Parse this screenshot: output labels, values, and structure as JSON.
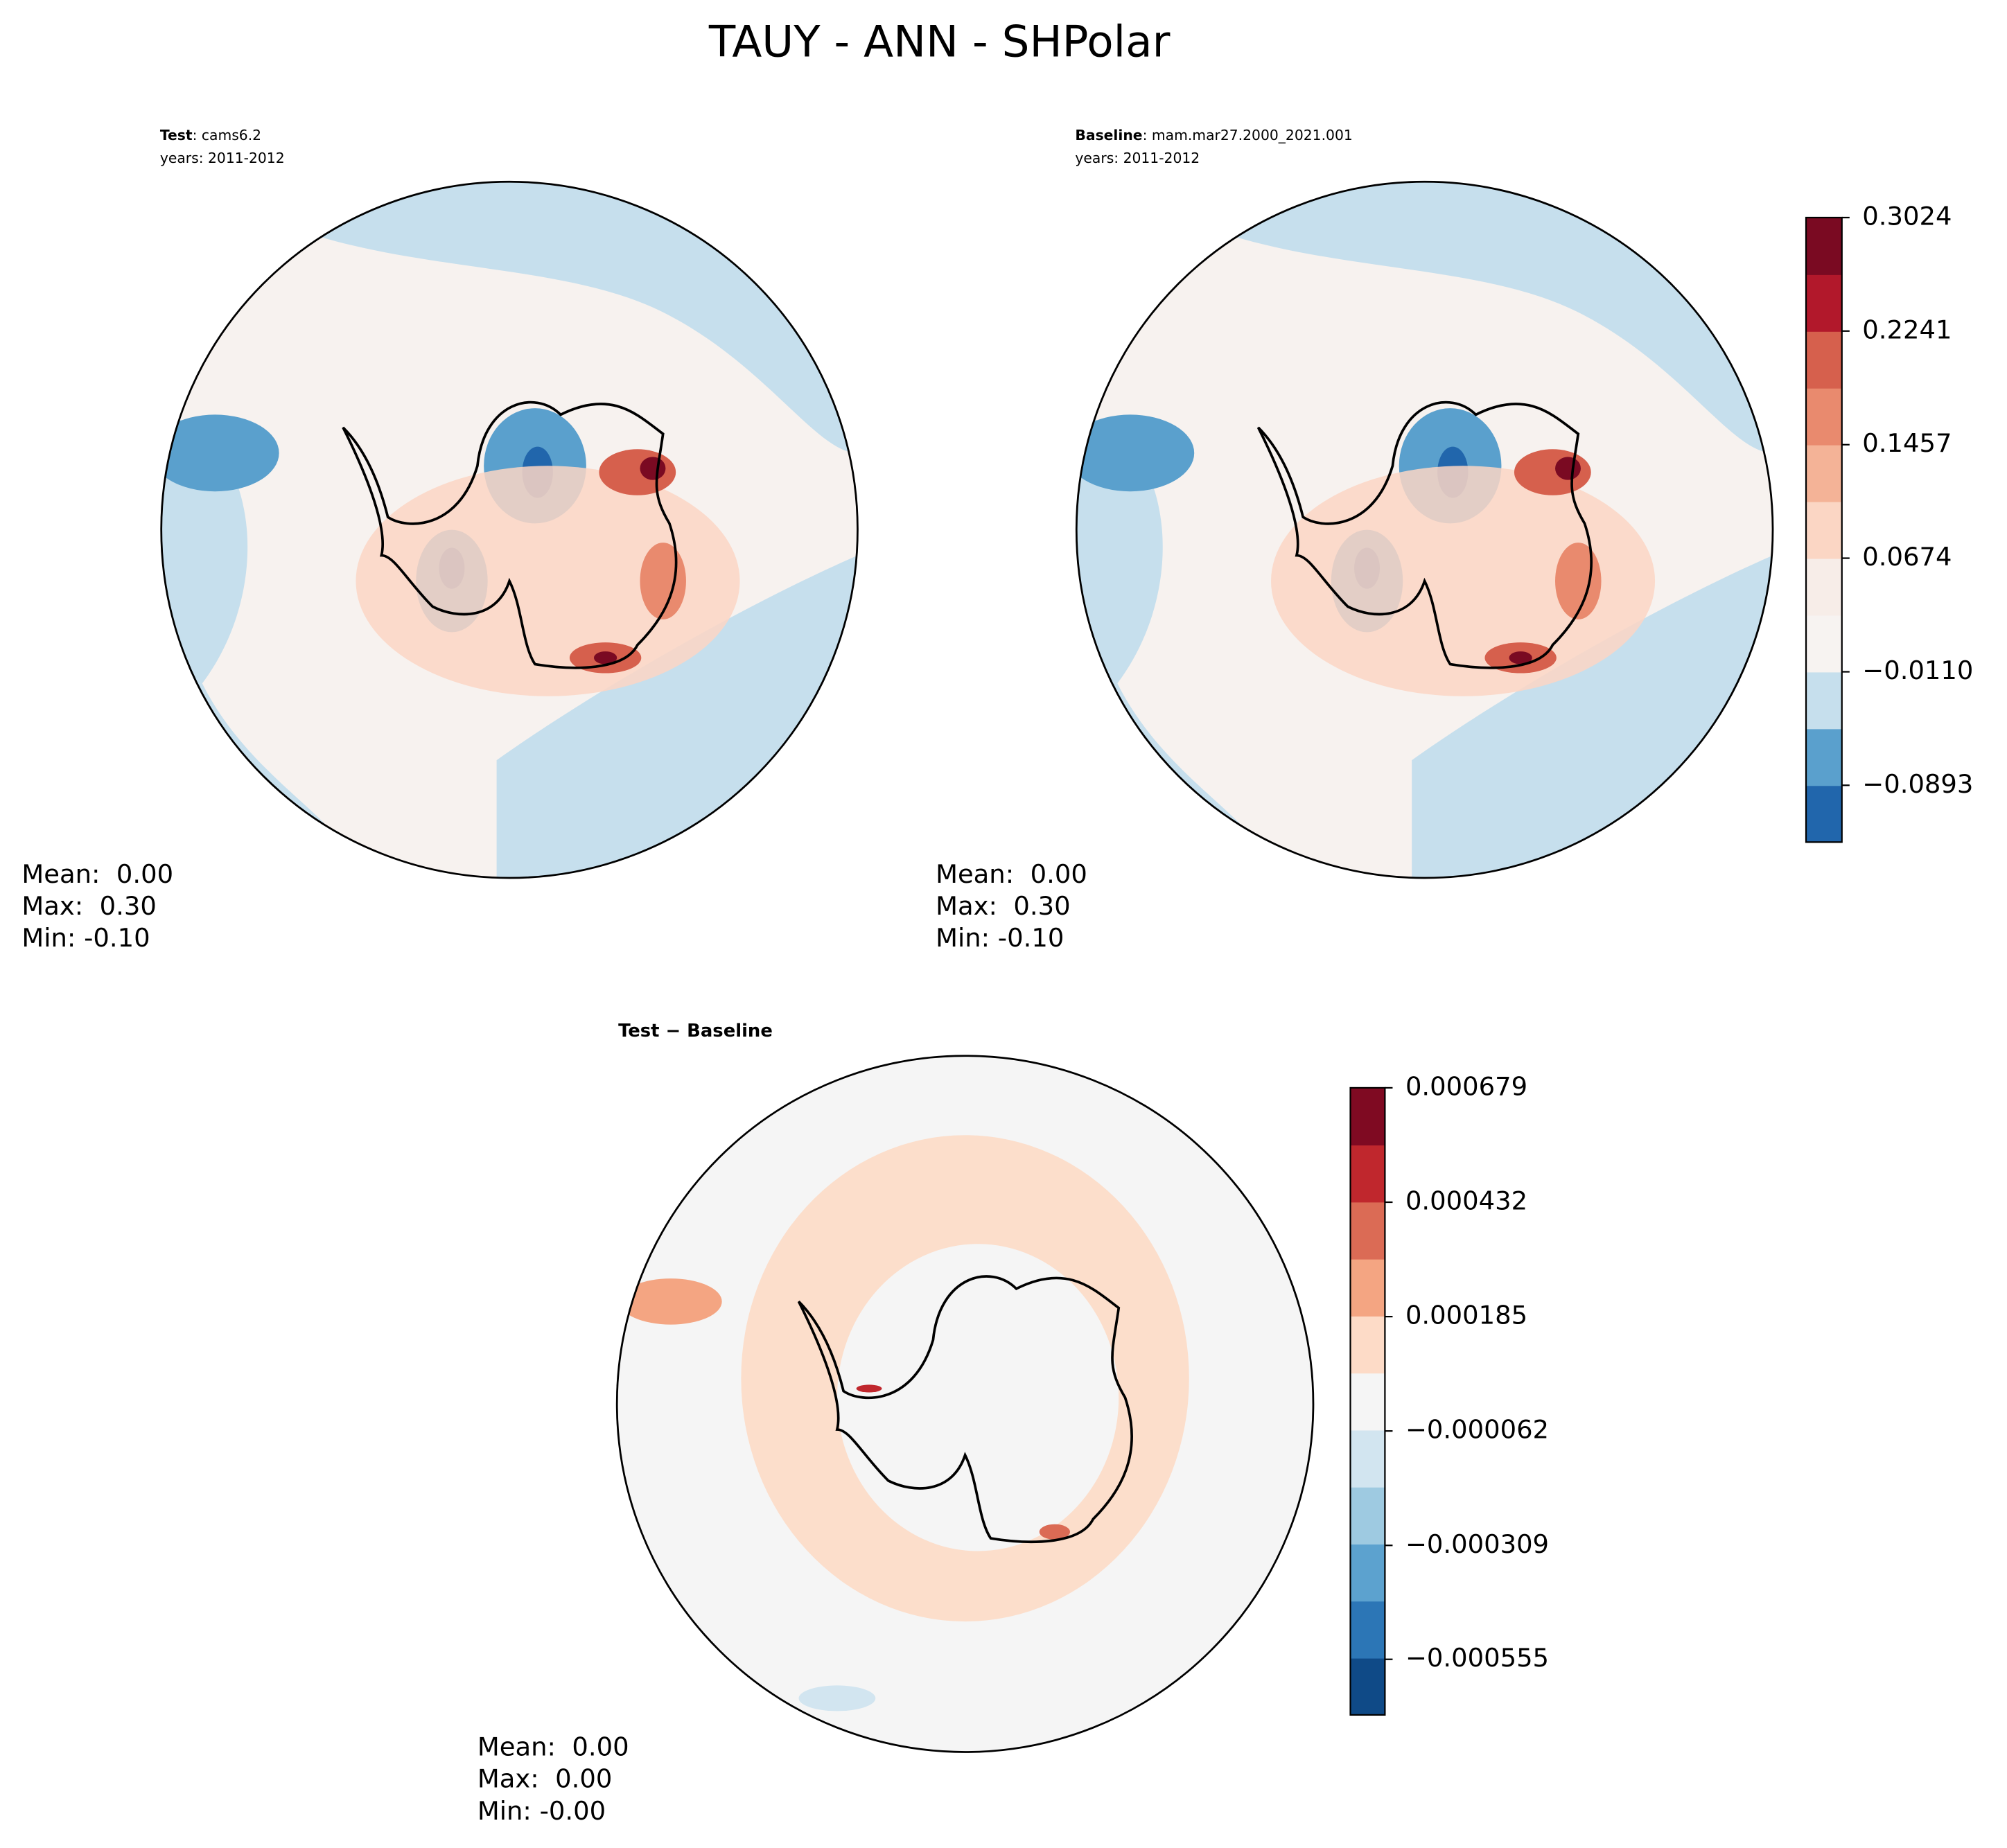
{
  "title": "TAUY - ANN - SHPolar",
  "panels": [
    {
      "label": "Test",
      "text": ": cams6.2",
      "years": "years: 2011-2012",
      "stats": [
        "Mean:  0.00",
        "Max:  0.30",
        "Min: -0.10"
      ]
    },
    {
      "label": "Baseline",
      "text": ": mam.mar27.2000_2021.001",
      "years": "years: 2011-2012",
      "stats": [
        "Mean:  0.00",
        "Max:  0.30",
        "Min: -0.10"
      ]
    },
    {
      "label": "Test − Baseline",
      "stats": [
        "Mean:  0.00",
        "Max:  0.00",
        "Min: -0.00"
      ]
    }
  ],
  "colorbars": [
    {
      "lim": [
        -0.1285,
        0.3024
      ],
      "ticks": [
        {
          "value": -0.0893,
          "label": "−0.0893"
        },
        {
          "value": -0.011,
          "label": "−0.0110"
        },
        0.0674,
        0.1457,
        0.2241,
        0.3024
      ],
      "colors": [
        "#2166ac",
        "#5aa0cd",
        "#c6dfed",
        "#f7f3f1",
        "#f7ede8",
        "#fbd6c4",
        "#f4b397",
        "#e98a6e",
        "#d6604d",
        "#b2182b",
        "#7a0a22"
      ]
    },
    {
      "lim": [
        -0.000675,
        0.000679
      ],
      "ticks": [
        {
          "value": -0.000555,
          "label": "−0.000555"
        },
        {
          "value": -0.000309,
          "label": "−0.000309"
        },
        {
          "value": -6.2e-05,
          "label": "−0.000062"
        },
        0.000185,
        0.000432,
        0.000679
      ],
      "colors": [
        "#0f4a87",
        "#2c76b6",
        "#5ca2cf",
        "#9ecae1",
        "#d2e5f0",
        "#f5f5f5",
        "#fddbc7",
        "#f4a582",
        "#db6b55",
        "#c0272d",
        "#7f0a22"
      ]
    }
  ]
}
